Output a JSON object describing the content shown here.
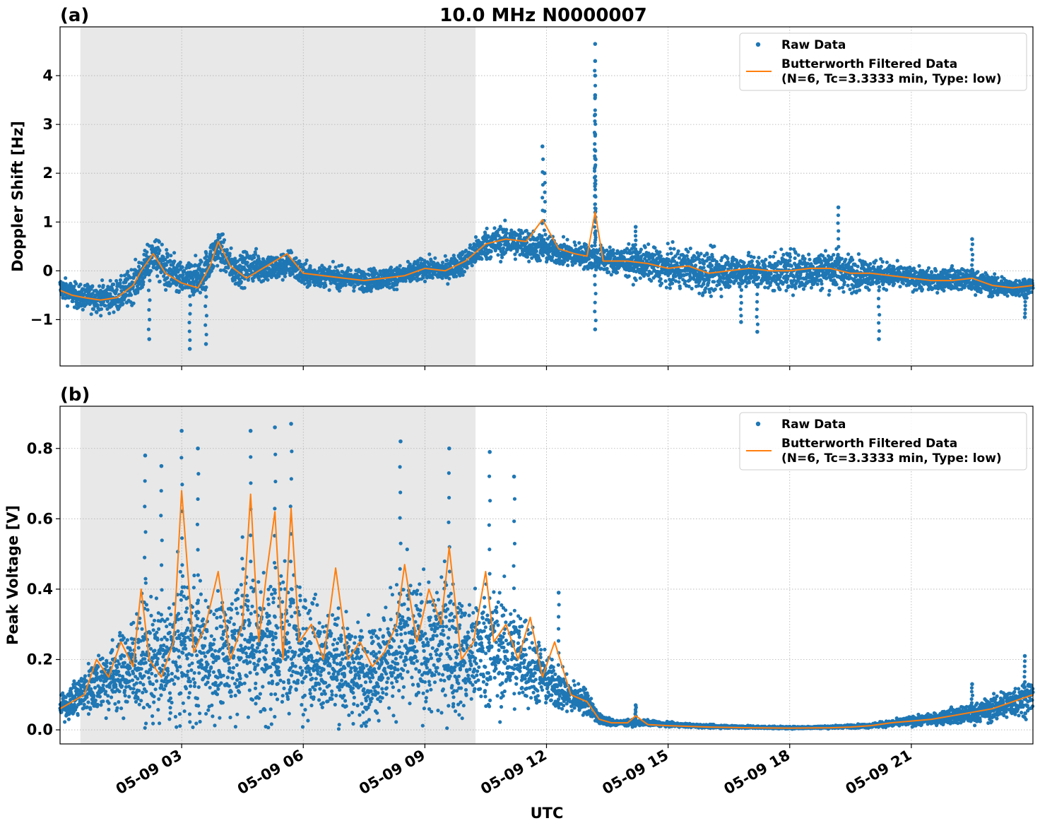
{
  "figure": {
    "title": "10.0 MHz N0000007",
    "xlabel": "UTC",
    "x_tick_labels": [
      "05-09 03",
      "05-09 06",
      "05-09 09",
      "05-09 12",
      "05-09 15",
      "05-09 18",
      "05-09 21"
    ]
  },
  "colors": {
    "raw": "#1f77b4",
    "filtered": "#ff7f0e",
    "shade": "#e8e8e8",
    "grid": "#b0b0b0"
  },
  "chart_data": [
    {
      "type": "scatter",
      "panel_label": "(a)",
      "ylabel": "Doppler Shift [Hz]",
      "x_unit": "hours UTC on 05-09",
      "xlim": [
        0.0,
        24.0
      ],
      "ylim": [
        -1.95,
        5.0
      ],
      "y_ticks": [
        -1,
        0,
        1,
        2,
        3,
        4
      ],
      "y_tick_labels": [
        "−1",
        "0",
        "1",
        "2",
        "3",
        "4"
      ],
      "x_ticks": [
        3,
        6,
        9,
        12,
        15,
        18,
        21
      ],
      "shaded_interval": [
        0.5,
        10.25
      ],
      "grid": true,
      "legend": {
        "position": "top-right",
        "entries": [
          "Raw Data",
          "Butterworth Filtered Data",
          "(N=6, Tc=3.3333 min, Type: low)"
        ]
      },
      "series": [
        {
          "name": "Raw Data",
          "style": "points",
          "x": [
            0.0,
            0.5,
            1.0,
            1.5,
            2.0,
            2.3,
            2.6,
            3.0,
            3.5,
            3.9,
            4.3,
            4.8,
            5.3,
            5.7,
            6.0,
            6.5,
            7.0,
            7.5,
            8.0,
            8.5,
            9.0,
            9.5,
            10.0,
            10.5,
            11.0,
            11.5,
            11.9,
            12.5,
            13.0,
            13.3,
            13.7,
            14.5,
            15.0,
            15.5,
            16.0,
            16.5,
            17.0,
            17.5,
            18.0,
            18.5,
            19.0,
            19.5,
            20.0,
            20.5,
            21.0,
            21.5,
            22.0,
            22.5,
            23.0,
            23.5,
            24.0
          ],
          "y_center": [
            -0.35,
            -0.55,
            -0.55,
            -0.5,
            -0.1,
            0.35,
            0.0,
            -0.2,
            -0.1,
            0.5,
            0.0,
            0.1,
            0.05,
            0.15,
            -0.1,
            -0.1,
            -0.15,
            -0.2,
            -0.15,
            -0.1,
            0.05,
            0.0,
            0.2,
            0.55,
            0.6,
            0.55,
            0.45,
            0.35,
            0.3,
            0.25,
            0.2,
            0.15,
            0.05,
            0.05,
            -0.05,
            0.0,
            0.0,
            -0.05,
            0.0,
            0.0,
            0.05,
            -0.05,
            -0.05,
            -0.1,
            -0.15,
            -0.2,
            -0.15,
            -0.2,
            -0.3,
            -0.35,
            -0.3
          ],
          "y_spread": [
            0.3,
            0.35,
            0.4,
            0.45,
            0.5,
            0.5,
            0.6,
            0.5,
            0.5,
            0.5,
            0.45,
            0.45,
            0.4,
            0.4,
            0.35,
            0.3,
            0.3,
            0.3,
            0.3,
            0.3,
            0.3,
            0.3,
            0.35,
            0.45,
            0.45,
            0.45,
            0.4,
            0.35,
            0.35,
            0.35,
            0.4,
            0.45,
            0.5,
            0.55,
            0.6,
            0.5,
            0.45,
            0.5,
            0.55,
            0.55,
            0.55,
            0.5,
            0.4,
            0.35,
            0.3,
            0.3,
            0.3,
            0.3,
            0.3,
            0.25,
            0.25
          ],
          "outliers": [
            [
              2.2,
              -1.4
            ],
            [
              3.2,
              -1.6
            ],
            [
              3.6,
              -1.5
            ],
            [
              11.9,
              2.55
            ],
            [
              11.95,
              2.0
            ],
            [
              13.2,
              4.65
            ],
            [
              13.2,
              4.3
            ],
            [
              13.2,
              4.0
            ],
            [
              13.2,
              3.6
            ],
            [
              13.2,
              3.2
            ],
            [
              13.2,
              2.8
            ],
            [
              13.2,
              2.3
            ],
            [
              13.2,
              -1.2
            ],
            [
              14.2,
              0.9
            ],
            [
              16.8,
              -1.05
            ],
            [
              17.2,
              -1.25
            ],
            [
              19.2,
              1.3
            ],
            [
              20.2,
              -1.4
            ],
            [
              22.5,
              0.65
            ],
            [
              23.8,
              -0.95
            ]
          ]
        },
        {
          "name": "Butterworth Filtered Data",
          "style": "line",
          "x": [
            0.0,
            0.3,
            0.6,
            1.0,
            1.4,
            1.8,
            2.0,
            2.3,
            2.6,
            3.0,
            3.4,
            3.7,
            3.9,
            4.2,
            4.6,
            5.0,
            5.3,
            5.6,
            6.0,
            6.5,
            7.0,
            7.5,
            8.0,
            8.5,
            9.0,
            9.5,
            10.0,
            10.5,
            11.0,
            11.5,
            11.9,
            12.3,
            12.7,
            13.0,
            13.2,
            13.4,
            14.0,
            14.5,
            15.0,
            15.5,
            16.0,
            16.5,
            17.0,
            17.5,
            18.0,
            18.5,
            19.0,
            19.5,
            20.0,
            20.5,
            21.0,
            21.5,
            22.0,
            22.5,
            23.0,
            23.5,
            24.0
          ],
          "y": [
            -0.4,
            -0.5,
            -0.55,
            -0.6,
            -0.55,
            -0.3,
            0.0,
            0.35,
            -0.05,
            -0.25,
            -0.35,
            0.1,
            0.6,
            0.1,
            -0.15,
            0.05,
            0.2,
            0.35,
            -0.05,
            -0.1,
            -0.15,
            -0.2,
            -0.15,
            -0.1,
            0.05,
            0.0,
            0.2,
            0.55,
            0.65,
            0.6,
            1.05,
            0.45,
            0.35,
            0.3,
            1.2,
            0.2,
            0.2,
            0.15,
            0.05,
            0.1,
            -0.05,
            0.0,
            0.05,
            0.0,
            0.0,
            0.05,
            0.05,
            -0.05,
            -0.05,
            -0.1,
            -0.15,
            -0.2,
            -0.2,
            -0.15,
            -0.3,
            -0.35,
            -0.3
          ]
        }
      ]
    },
    {
      "type": "scatter",
      "panel_label": "(b)",
      "ylabel": "Peak Voltage [V]",
      "x_unit": "hours UTC on 05-09",
      "xlim": [
        0.0,
        24.0
      ],
      "ylim": [
        -0.04,
        0.92
      ],
      "y_ticks": [
        0.0,
        0.2,
        0.4,
        0.6,
        0.8
      ],
      "y_tick_labels": [
        "0.0",
        "0.2",
        "0.4",
        "0.6",
        "0.8"
      ],
      "x_ticks": [
        3,
        6,
        9,
        12,
        15,
        18,
        21
      ],
      "shaded_interval": [
        0.5,
        10.25
      ],
      "grid": true,
      "legend": {
        "position": "top-right",
        "entries": [
          "Raw Data",
          "Butterworth Filtered Data",
          "(N=6, Tc=3.3333 min, Type: low)"
        ]
      },
      "series": [
        {
          "name": "Raw Data",
          "style": "points",
          "x": [
            0.0,
            0.5,
            1.0,
            1.5,
            2.0,
            2.3,
            2.6,
            3.0,
            3.5,
            4.0,
            4.5,
            5.0,
            5.5,
            6.0,
            6.5,
            7.0,
            7.5,
            8.0,
            8.5,
            9.0,
            9.5,
            10.0,
            10.5,
            11.0,
            11.5,
            12.0,
            12.5,
            13.0,
            13.3,
            13.7,
            14.5,
            15.0,
            16.0,
            17.0,
            18.0,
            19.0,
            19.5,
            20.0,
            20.5,
            21.0,
            21.5,
            22.0,
            22.5,
            23.0,
            23.5,
            24.0
          ],
          "y_center": [
            0.06,
            0.1,
            0.14,
            0.16,
            0.2,
            0.2,
            0.18,
            0.24,
            0.22,
            0.2,
            0.28,
            0.22,
            0.26,
            0.22,
            0.2,
            0.18,
            0.16,
            0.2,
            0.25,
            0.22,
            0.25,
            0.2,
            0.24,
            0.22,
            0.2,
            0.14,
            0.1,
            0.08,
            0.03,
            0.02,
            0.02,
            0.015,
            0.01,
            0.008,
            0.006,
            0.008,
            0.01,
            0.012,
            0.018,
            0.025,
            0.03,
            0.04,
            0.045,
            0.06,
            0.08,
            0.1
          ],
          "y_spread": [
            0.04,
            0.08,
            0.12,
            0.15,
            0.22,
            0.26,
            0.2,
            0.3,
            0.25,
            0.22,
            0.3,
            0.28,
            0.3,
            0.25,
            0.22,
            0.2,
            0.18,
            0.2,
            0.28,
            0.25,
            0.28,
            0.22,
            0.25,
            0.22,
            0.18,
            0.1,
            0.07,
            0.05,
            0.02,
            0.012,
            0.01,
            0.008,
            0.006,
            0.005,
            0.004,
            0.005,
            0.006,
            0.008,
            0.012,
            0.018,
            0.02,
            0.03,
            0.035,
            0.05,
            0.06,
            0.07
          ],
          "outliers": [
            [
              2.1,
              0.78
            ],
            [
              2.5,
              0.75
            ],
            [
              3.0,
              0.85
            ],
            [
              3.4,
              0.8
            ],
            [
              4.7,
              0.85
            ],
            [
              5.3,
              0.86
            ],
            [
              5.7,
              0.87
            ],
            [
              8.4,
              0.82
            ],
            [
              9.6,
              0.8
            ],
            [
              10.6,
              0.79
            ],
            [
              11.2,
              0.72
            ],
            [
              12.3,
              0.39
            ],
            [
              14.2,
              0.07
            ],
            [
              22.5,
              0.13
            ],
            [
              23.8,
              0.21
            ]
          ]
        },
        {
          "name": "Butterworth Filtered Data",
          "style": "line",
          "x": [
            0.0,
            0.3,
            0.6,
            0.9,
            1.2,
            1.5,
            1.8,
            2.0,
            2.2,
            2.5,
            2.8,
            3.0,
            3.3,
            3.6,
            3.9,
            4.2,
            4.5,
            4.7,
            4.9,
            5.1,
            5.3,
            5.5,
            5.7,
            5.9,
            6.2,
            6.5,
            6.8,
            7.1,
            7.4,
            7.7,
            8.0,
            8.3,
            8.5,
            8.8,
            9.1,
            9.4,
            9.6,
            9.9,
            10.2,
            10.5,
            10.7,
            11.0,
            11.3,
            11.6,
            11.9,
            12.2,
            12.6,
            13.0,
            13.3,
            13.6,
            14.0,
            14.2,
            14.5,
            15.0,
            16.0,
            17.0,
            18.0,
            19.0,
            19.5,
            20.0,
            20.5,
            21.0,
            21.5,
            22.0,
            22.5,
            23.0,
            23.5,
            24.0
          ],
          "y": [
            0.06,
            0.08,
            0.1,
            0.2,
            0.15,
            0.25,
            0.18,
            0.4,
            0.2,
            0.15,
            0.25,
            0.68,
            0.22,
            0.3,
            0.45,
            0.2,
            0.3,
            0.67,
            0.25,
            0.45,
            0.62,
            0.2,
            0.63,
            0.25,
            0.3,
            0.2,
            0.46,
            0.2,
            0.25,
            0.18,
            0.22,
            0.3,
            0.47,
            0.25,
            0.4,
            0.3,
            0.52,
            0.2,
            0.25,
            0.45,
            0.25,
            0.3,
            0.2,
            0.32,
            0.15,
            0.25,
            0.1,
            0.08,
            0.03,
            0.02,
            0.02,
            0.04,
            0.015,
            0.012,
            0.008,
            0.006,
            0.005,
            0.006,
            0.008,
            0.012,
            0.02,
            0.025,
            0.03,
            0.04,
            0.05,
            0.06,
            0.08,
            0.1
          ]
        }
      ]
    }
  ]
}
